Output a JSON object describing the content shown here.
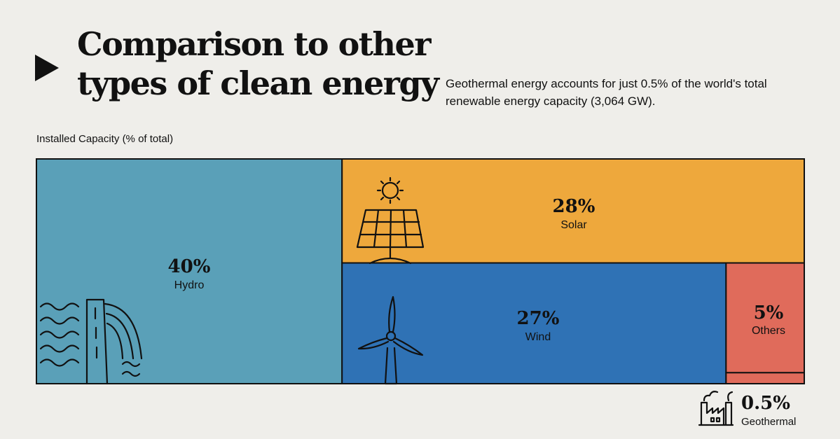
{
  "title": {
    "line1": "Comparison to other",
    "line2": "types of clean energy"
  },
  "subtitle": "Geothermal energy accounts for just 0.5% of the world's total renewable energy capacity (3,064 GW).",
  "chart_data": {
    "type": "treemap",
    "title": "Comparison to other types of clean energy",
    "measure_label": "Installed Capacity (% of total)",
    "total_capacity": "3,064 GW",
    "unit": "%",
    "items": [
      {
        "name": "Hydro",
        "value": 40,
        "label": "40%",
        "color": "#5aa0b8"
      },
      {
        "name": "Solar",
        "value": 28,
        "label": "28%",
        "color": "#eea83c"
      },
      {
        "name": "Wind",
        "value": 27,
        "label": "27%",
        "color": "#2f72b5"
      },
      {
        "name": "Others",
        "value": 5,
        "label": "5%",
        "color": "#e06b5b"
      },
      {
        "name": "Geothermal",
        "value": 0.5,
        "label": "0.5%",
        "color": "#e06b5b"
      }
    ]
  },
  "icons": {
    "hydro": "dam-waves-icon",
    "solar": "sun-solar-panel-icon",
    "wind": "wind-turbine-icon",
    "geothermal": "factory-icon"
  },
  "colors": {
    "background": "#efeeea",
    "outline": "#111111"
  }
}
